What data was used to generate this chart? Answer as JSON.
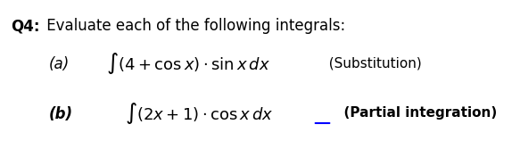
{
  "title_bold": "Q4:",
  "title_normal": " Evaluate each of the following integrals:",
  "part_a_label": "(a)",
  "part_a_integral": "$\\int(4+\\cos x)\\cdot\\sin x\\,dx$",
  "part_a_method": "  (Substitution)",
  "part_b_label": "(b)",
  "part_b_integral": "$\\int(2x+1)\\cdot\\cos x\\,dx$",
  "part_b_method": "  (Partial integration)",
  "background_color": "#ffffff",
  "text_color": "#000000",
  "title_fontsize": 12,
  "label_fontsize": 12,
  "integral_fontsize": 13,
  "method_fontsize": 11,
  "bold_method_b": true,
  "underline_color": "#0000ff"
}
